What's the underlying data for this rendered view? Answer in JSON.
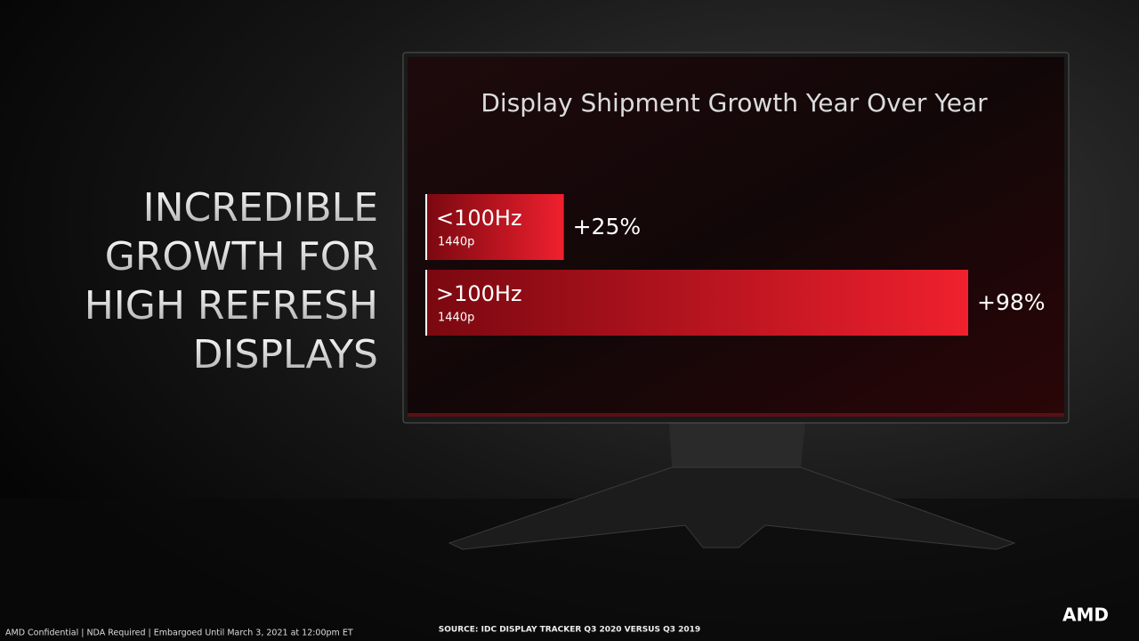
{
  "chart_data": {
    "type": "bar",
    "orientation": "horizontal",
    "title": "Display Shipment Growth Year Over Year",
    "categories": [
      "<100Hz",
      ">100Hz"
    ],
    "subcategories": [
      "1440p",
      "1440p"
    ],
    "values": [
      25,
      98
    ],
    "value_labels": [
      "+25%",
      "+98%"
    ],
    "color": "#f0202e"
  },
  "slide": {
    "headline": [
      "INCREDIBLE",
      "GROWTH FOR",
      "HIGH REFRESH",
      "DISPLAYS"
    ],
    "footer": "AMD Confidential | NDA Required | Embargoed Until March 3, 2021 at 12:00pm ET",
    "source": "SOURCE: IDC DISPLAY TRACKER Q3 2020 VERSUS Q3 2019",
    "logo": "AMD"
  }
}
